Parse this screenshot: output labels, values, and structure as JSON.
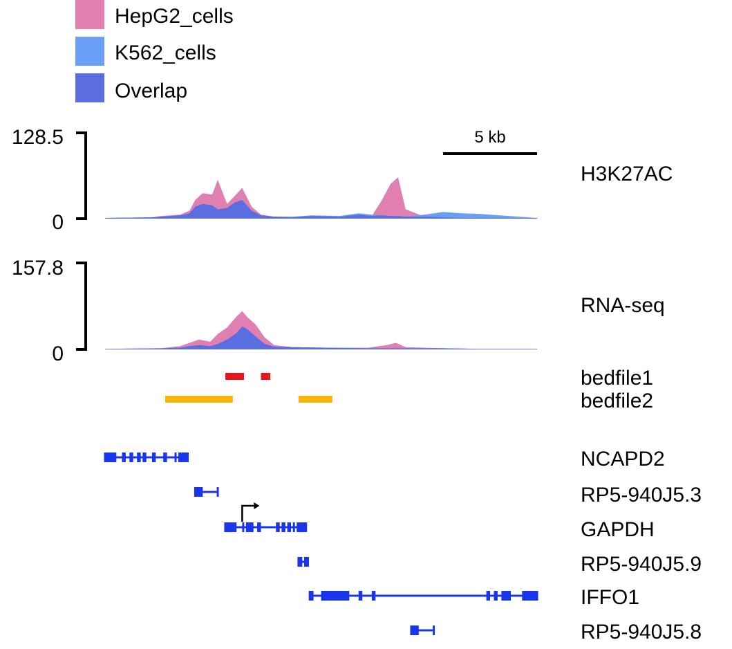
{
  "colors": {
    "hepg2": "#e07fb0",
    "k562": "#6aa0f5",
    "overlap": "#5b6ee0",
    "bedfile1": "#e8151d",
    "bedfile2": "#f9b60a",
    "gene": "#1936ea",
    "axis": "#000000"
  },
  "legend": {
    "items": [
      {
        "label": "HepG2_cells",
        "color": "#e07fb0"
      },
      {
        "label": "K562_cells",
        "color": "#6aa0f5"
      },
      {
        "label": "Overlap",
        "color": "#5b6ee0"
      }
    ]
  },
  "scale_bar": {
    "label": "5 kb",
    "kb": 5
  },
  "chart_data": {
    "type": "area",
    "region_kb": [
      0,
      23
    ],
    "series_names": [
      "HepG2_cells",
      "K562_cells"
    ],
    "tracks": [
      {
        "name": "H3K27AC",
        "ymax_label": "128.5",
        "ymin_label": "0",
        "ylim": [
          0,
          128.5
        ],
        "x_kb": [
          0,
          2.5,
          3.0,
          4.0,
          4.5,
          4.8,
          5.2,
          5.7,
          6.0,
          6.5,
          6.9,
          7.3,
          7.8,
          8.3,
          9.0,
          10.0,
          11.0,
          12.5,
          13.5,
          14.2,
          14.7,
          15.2,
          15.6,
          16.0,
          17.0,
          18.0,
          19.0,
          20.0,
          21.0,
          22.0,
          23.0
        ],
        "hepg2": [
          1,
          2,
          4,
          6,
          12,
          28,
          38,
          36,
          58,
          22,
          34,
          46,
          18,
          6,
          3,
          2,
          4,
          3,
          6,
          4,
          26,
          52,
          62,
          14,
          3,
          2,
          1,
          1,
          1,
          1,
          1
        ],
        "k562": [
          1,
          2,
          3,
          5,
          8,
          18,
          22,
          20,
          14,
          16,
          24,
          28,
          12,
          5,
          3,
          3,
          5,
          4,
          8,
          6,
          5,
          4,
          4,
          3,
          6,
          10,
          8,
          7,
          5,
          3,
          1
        ]
      },
      {
        "name": "RNA-seq",
        "ymax_label": "157.8",
        "ymin_label": "0",
        "ylim": [
          0,
          157.8
        ],
        "x_kb": [
          0,
          3.0,
          4.0,
          4.5,
          5.0,
          5.6,
          6.0,
          6.5,
          7.0,
          7.3,
          7.6,
          8.0,
          8.5,
          9.0,
          10.0,
          12.0,
          14.0,
          15.0,
          15.5,
          16.0,
          18.0,
          20.0,
          23.0
        ],
        "hepg2": [
          1,
          2,
          6,
          12,
          18,
          14,
          28,
          40,
          60,
          70,
          58,
          46,
          22,
          8,
          4,
          3,
          3,
          8,
          12,
          4,
          2,
          1,
          1
        ],
        "k562": [
          1,
          2,
          3,
          6,
          8,
          6,
          10,
          18,
          30,
          42,
          36,
          24,
          10,
          5,
          4,
          3,
          2,
          2,
          2,
          2,
          2,
          1,
          1
        ]
      }
    ],
    "bed_tracks": [
      {
        "name": "bedfile1",
        "color": "#e8151d",
        "intervals_kb": [
          [
            6.4,
            7.4
          ],
          [
            8.3,
            8.8
          ]
        ]
      },
      {
        "name": "bedfile2",
        "color": "#f9b60a",
        "intervals_kb": [
          [
            3.2,
            6.8
          ],
          [
            10.3,
            12.1
          ]
        ]
      }
    ],
    "genes": [
      {
        "name": "NCAPD2",
        "start_kb": 0.0,
        "end_kb": 4.4,
        "exons_kb": [
          [
            0.0,
            0.6
          ],
          [
            0.9,
            1.1
          ],
          [
            1.3,
            1.5
          ],
          [
            1.7,
            1.9
          ],
          [
            2.0,
            2.2
          ],
          [
            2.5,
            2.7
          ],
          [
            3.1,
            3.3
          ],
          [
            3.7,
            3.8
          ],
          [
            3.9,
            4.4
          ]
        ]
      },
      {
        "name": "RP5-940J5.3",
        "start_kb": 4.8,
        "end_kb": 6.0,
        "exons_kb": [
          [
            4.8,
            5.2
          ]
        ]
      },
      {
        "name": "GAPDH",
        "start_kb": 6.4,
        "end_kb": 10.7,
        "tss_kb": 7.3,
        "exons_kb": [
          [
            6.4,
            7.0
          ],
          [
            7.3,
            7.4
          ],
          [
            7.5,
            7.9
          ],
          [
            8.1,
            8.3
          ],
          [
            9.1,
            9.3
          ],
          [
            9.4,
            9.6
          ],
          [
            9.7,
            9.9
          ],
          [
            10.0,
            10.1
          ],
          [
            10.2,
            10.7
          ]
        ]
      },
      {
        "name": "RP5-940J5.9",
        "start_kb": 10.3,
        "end_kb": 10.8,
        "exons_kb": [
          [
            10.3,
            10.5
          ],
          [
            10.6,
            10.8
          ]
        ]
      },
      {
        "name": "IFFO1",
        "start_kb": 10.9,
        "end_kb": 23.0,
        "exons_kb": [
          [
            10.9,
            11.1
          ],
          [
            11.5,
            13.0
          ],
          [
            13.5,
            13.7
          ],
          [
            14.2,
            14.4
          ],
          [
            20.3,
            20.5
          ],
          [
            20.7,
            20.9
          ],
          [
            21.1,
            21.6
          ],
          [
            22.2,
            23.0
          ]
        ]
      },
      {
        "name": "RP5-940J5.8",
        "start_kb": 16.3,
        "end_kb": 17.5,
        "exons_kb": [
          [
            16.3,
            16.7
          ]
        ]
      }
    ]
  }
}
